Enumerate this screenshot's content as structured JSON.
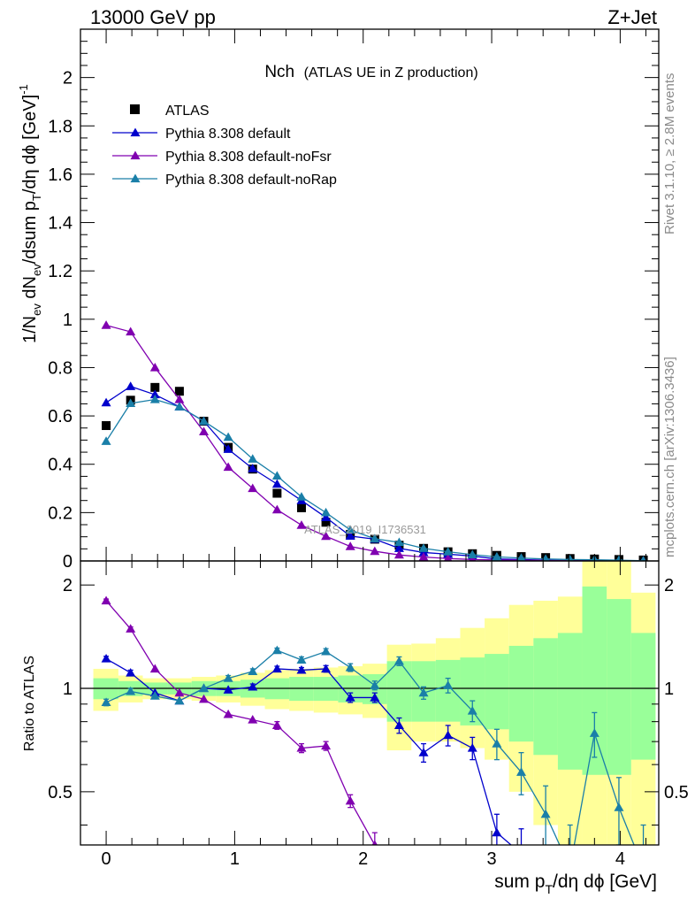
{
  "header": {
    "left": "13000 GeV pp",
    "right": "Z+Jet"
  },
  "side_text": {
    "rivet_prefix": "Rivet 3.1.10, ",
    "rivet_events": "≥ 2.8M events",
    "mcplots": "mcplots.cern.ch [arXiv:1306.3436]"
  },
  "chart_data": [
    {
      "type": "scatter",
      "panel": "main",
      "title": "Nch",
      "subtitle": "(ATLAS UE in Z production)",
      "watermark": "ATLAS_2019_I1736531",
      "ylabel": {
        "p1": "1/N",
        "sub1": "ev",
        "p2": " dN",
        "sub2": "ev",
        "p3": "/dsum p",
        "sub3": "T",
        "p4": "/dη dϕ  [GeV]",
        "sup": "-1"
      },
      "ylim": [
        0,
        2.2
      ],
      "yticks": [
        0,
        0.2,
        0.4,
        0.6,
        0.8,
        1,
        1.2,
        1.4,
        1.6,
        1.8,
        2
      ],
      "ytick_labels": [
        "0",
        "0.2",
        "0.4",
        "0.6",
        "0.8",
        "1",
        "1.2",
        "1.4",
        "1.6",
        "1.8",
        "2"
      ],
      "xlim": [
        -0.2,
        4.3
      ],
      "x": [
        0.0,
        0.19,
        0.38,
        0.57,
        0.76,
        0.95,
        1.14,
        1.33,
        1.52,
        1.71,
        1.9,
        2.09,
        2.28,
        2.47,
        2.66,
        2.85,
        3.04,
        3.23,
        3.42,
        3.61,
        3.8,
        3.99,
        4.18
      ],
      "legend_position": "top-left",
      "series": [
        {
          "name": "ATLAS",
          "color": "#000000",
          "marker": "square",
          "line": false,
          "values": [
            0.56,
            0.665,
            0.718,
            0.702,
            0.578,
            0.47,
            0.38,
            0.28,
            0.22,
            0.16,
            0.11,
            0.09,
            0.065,
            0.052,
            0.038,
            0.03,
            0.023,
            0.018,
            0.014,
            0.01,
            0.008,
            0.006,
            0.004
          ]
        },
        {
          "name": "Pythia 8.308 default",
          "color": "#0000cc",
          "marker": "triangle",
          "line": true,
          "values": [
            0.655,
            0.722,
            0.688,
            0.638,
            0.578,
            0.462,
            0.382,
            0.318,
            0.25,
            0.18,
            0.103,
            0.09,
            0.052,
            0.035,
            0.028,
            0.02,
            0.008,
            0.006,
            0.003,
            0.002,
            0.001,
            0.001,
            0.0005
          ]
        },
        {
          "name": "Pythia 8.308 default-noFsr",
          "color": "#8000b0",
          "marker": "triangle",
          "line": true,
          "values": [
            0.975,
            0.948,
            0.8,
            0.668,
            0.535,
            0.388,
            0.3,
            0.212,
            0.148,
            0.102,
            0.06,
            0.04,
            0.025,
            0.016,
            0.01,
            0.006,
            0.004,
            0.003,
            0.002,
            0.001,
            0.001,
            0.0005,
            0.0002
          ]
        },
        {
          "name": "Pythia 8.308 default-noRap",
          "color": "#1a7fa8",
          "marker": "triangle",
          "line": true,
          "values": [
            0.495,
            0.652,
            0.668,
            0.638,
            0.578,
            0.512,
            0.422,
            0.352,
            0.265,
            0.2,
            0.128,
            0.092,
            0.077,
            0.052,
            0.038,
            0.026,
            0.017,
            0.012,
            0.008,
            0.006,
            0.005,
            0.003,
            0.001
          ]
        }
      ]
    },
    {
      "type": "scatter",
      "panel": "ratio",
      "ylabel": "Ratio to ATLAS",
      "xlabel": {
        "p1": "sum p",
        "sub": "T",
        "p2": "/dη dϕ [GeV]"
      },
      "ylim": [
        0.35,
        2.35
      ],
      "yticks": [
        0.5,
        1,
        2
      ],
      "ytick_labels": [
        "0.5",
        "1",
        "2"
      ],
      "xticks": [
        0,
        1,
        2,
        3,
        4
      ],
      "xtick_labels": [
        "0",
        "1",
        "2",
        "3",
        "4"
      ],
      "xlim": [
        -0.2,
        4.3
      ],
      "bin_edges": [
        -0.1,
        0.095,
        0.285,
        0.475,
        0.665,
        0.855,
        1.045,
        1.235,
        1.425,
        1.615,
        1.805,
        1.995,
        2.185,
        2.375,
        2.565,
        2.755,
        2.945,
        3.135,
        3.325,
        3.515,
        3.705,
        3.895,
        4.085,
        4.275
      ],
      "band_total": {
        "lo": [
          0.86,
          0.91,
          0.93,
          0.93,
          0.92,
          0.91,
          0.89,
          0.87,
          0.86,
          0.85,
          0.84,
          0.82,
          0.66,
          0.7,
          0.7,
          0.67,
          0.62,
          0.5,
          0.4,
          0.3,
          0.3,
          0.3,
          0.3
        ],
        "hi": [
          1.14,
          1.09,
          1.07,
          1.07,
          1.08,
          1.09,
          1.11,
          1.13,
          1.14,
          1.15,
          1.16,
          1.18,
          1.34,
          1.35,
          1.4,
          1.5,
          1.6,
          1.75,
          1.8,
          1.85,
          2.45,
          2.4,
          1.9
        ]
      },
      "band_stat": {
        "lo": [
          0.93,
          0.95,
          0.96,
          0.96,
          0.95,
          0.95,
          0.94,
          0.93,
          0.92,
          0.92,
          0.91,
          0.9,
          0.8,
          0.8,
          0.8,
          0.78,
          0.76,
          0.7,
          0.64,
          0.58,
          0.56,
          0.56,
          0.62
        ],
        "hi": [
          1.07,
          1.05,
          1.04,
          1.04,
          1.05,
          1.05,
          1.06,
          1.07,
          1.08,
          1.08,
          1.09,
          1.1,
          1.2,
          1.2,
          1.21,
          1.23,
          1.26,
          1.33,
          1.4,
          1.45,
          1.98,
          1.82,
          1.45
        ]
      },
      "series": [
        {
          "name": "Pythia 8.308 default",
          "color": "#0000cc",
          "values": [
            1.22,
            1.11,
            0.97,
            0.92,
            1.0,
            0.99,
            1.01,
            1.14,
            1.13,
            1.14,
            0.94,
            0.94,
            0.78,
            0.65,
            0.73,
            0.67,
            0.38,
            0.33,
            null,
            null,
            null,
            null,
            null
          ],
          "errors": [
            0.02,
            0.02,
            0.015,
            0.015,
            0.015,
            0.015,
            0.02,
            0.02,
            0.02,
            0.025,
            0.03,
            0.03,
            0.04,
            0.04,
            0.05,
            0.05,
            0.05,
            0.06,
            null,
            null,
            null,
            null,
            null
          ]
        },
        {
          "name": "Pythia 8.308 default-noFsr",
          "color": "#8000b0",
          "values": [
            1.8,
            1.49,
            1.14,
            0.97,
            0.93,
            0.84,
            0.81,
            0.78,
            0.67,
            0.68,
            0.47,
            0.35,
            null,
            null,
            null,
            null,
            null,
            null,
            null,
            null,
            null,
            null,
            null
          ],
          "errors": [
            0.02,
            0.02,
            0.015,
            0.015,
            0.015,
            0.015,
            0.015,
            0.02,
            0.02,
            0.02,
            0.02,
            0.03,
            null,
            null,
            null,
            null,
            null,
            null,
            null,
            null,
            null,
            null,
            null
          ]
        },
        {
          "name": "Pythia 8.308 default-noRap",
          "color": "#1a7fa8",
          "values": [
            0.91,
            0.98,
            0.95,
            0.92,
            1.0,
            1.07,
            1.12,
            1.29,
            1.21,
            1.28,
            1.15,
            1.02,
            1.2,
            0.97,
            1.02,
            0.86,
            0.69,
            0.57,
            0.43,
            0.3,
            0.74,
            0.45,
            0.3
          ],
          "errors": [
            0.02,
            0.02,
            0.015,
            0.015,
            0.015,
            0.02,
            0.02,
            0.02,
            0.025,
            0.025,
            0.03,
            0.03,
            0.035,
            0.04,
            0.05,
            0.06,
            0.07,
            0.08,
            0.09,
            0.1,
            0.11,
            0.1,
            0.1
          ]
        }
      ]
    }
  ]
}
